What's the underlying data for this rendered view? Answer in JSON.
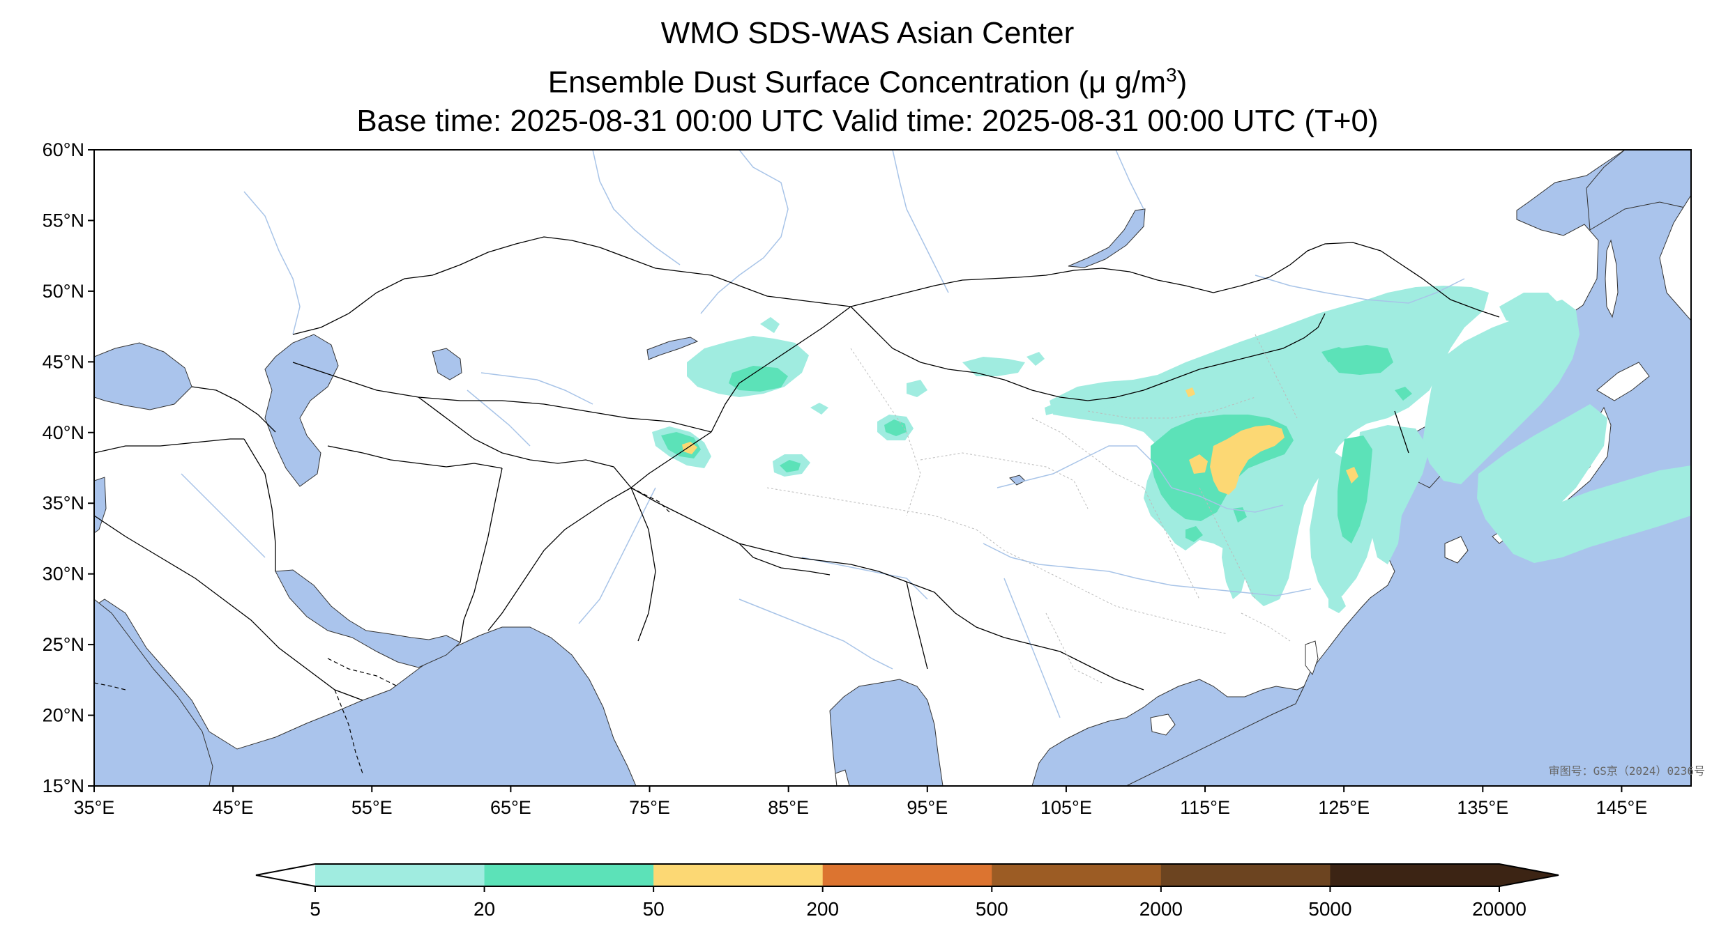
{
  "title": {
    "line1": "WMO SDS-WAS Asian Center",
    "line2_prefix": "Ensemble Dust Surface Concentration (",
    "line2_unit": "μ g/m",
    "line2_sup": "3",
    "line2_suffix": ")",
    "line3": "Base time: 2025-08-31 00:00 UTC Valid time: 2025-08-31 00:00 UTC (T+0)"
  },
  "map": {
    "lon_range": [
      35,
      150
    ],
    "lat_range": [
      15,
      60
    ],
    "lon_ticks": [
      "35°E",
      "45°E",
      "55°E",
      "65°E",
      "75°E",
      "85°E",
      "95°E",
      "105°E",
      "115°E",
      "125°E",
      "135°E",
      "145°E"
    ],
    "lat_ticks": [
      "60°N",
      "55°N",
      "50°N",
      "45°N",
      "40°N",
      "35°N",
      "30°N",
      "25°N",
      "20°N",
      "15°N"
    ],
    "ocean_color": "#aac4ec",
    "land_color": "#ffffff",
    "approval_stamp": "审图号：GS京（2024）0236号"
  },
  "colorbar": {
    "levels": [
      "5",
      "20",
      "50",
      "200",
      "500",
      "2000",
      "5000",
      "20000"
    ],
    "colors": [
      "#a0ece0",
      "#5ce2b8",
      "#fcd874",
      "#dc7430",
      "#9c5c24",
      "#6c4420",
      "#3c2414"
    ],
    "extend": "both"
  }
}
